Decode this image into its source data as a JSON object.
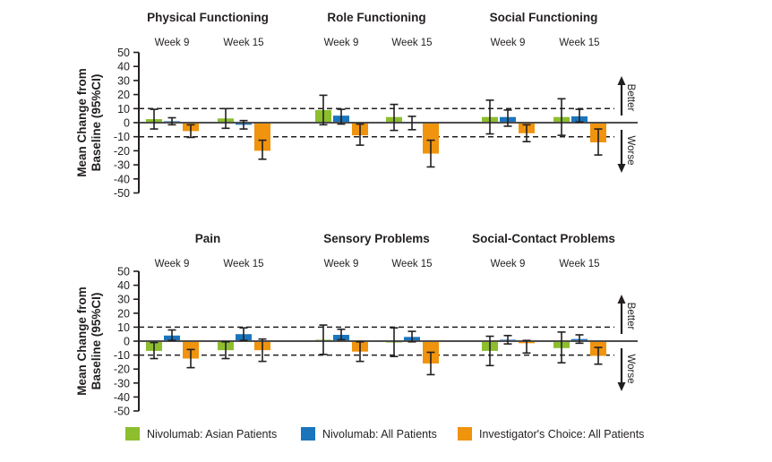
{
  "figure": {
    "ylabel": "Mean Change from Baseline (95%CI)",
    "ylabel_lines": [
      "Mean Change from",
      "Baseline (95%CI)"
    ],
    "better_label": "Better",
    "worse_label": "Worse"
  },
  "colors": {
    "asian_patients": "#8CBE2E",
    "all_patients": "#1B75BC",
    "investigators_choice": "#F0930D",
    "axis": "#231F20",
    "zero_line": "#4D4D4F"
  },
  "legend": {
    "items": [
      {
        "key": "asian_patients",
        "label": "Nivolumab: Asian Patients"
      },
      {
        "key": "all_patients",
        "label": "Nivolumab: All Patients"
      },
      {
        "key": "investigators_choice",
        "label": "Investigator's Choice: All Patients"
      }
    ]
  },
  "chart_data": [
    {
      "type": "bar",
      "panel": "top",
      "ylabel": "Mean Change from Baseline (95%CI)",
      "ylim": [
        -50,
        50
      ],
      "yticks": [
        50,
        40,
        30,
        20,
        10,
        0,
        -10,
        -20,
        -30,
        -40,
        -50
      ],
      "dashed_reference_lines": [
        10,
        -10
      ],
      "series": [
        "Nivolumab: Asian Patients",
        "Nivolumab: All Patients",
        "Investigator's Choice: All Patients"
      ],
      "domains": [
        {
          "title": "Physical Functioning",
          "groups": [
            {
              "week": "Week 9",
              "values": [
                2.5,
                1,
                -6
              ],
              "ci": [
                [
                  -4.5,
                  9.5
                ],
                [
                  -1.5,
                  3.5
                ],
                [
                  -10.5,
                  -1.5
                ]
              ]
            },
            {
              "week": "Week 15",
              "values": [
                3,
                -1.5,
                -20
              ],
              "ci": [
                [
                  -4,
                  10
                ],
                [
                  -4.5,
                  1.5
                ],
                [
                  -26,
                  -12.5
                ]
              ]
            }
          ]
        },
        {
          "title": "Role Functioning",
          "groups": [
            {
              "week": "Week 9",
              "values": [
                9,
                5,
                -9
              ],
              "ci": [
                [
                  -1.5,
                  19.5
                ],
                [
                  -1,
                  9.5
                ],
                [
                  -16,
                  -1
                ]
              ]
            },
            {
              "week": "Week 15",
              "values": [
                4,
                -0.5,
                -22
              ],
              "ci": [
                [
                  -5.5,
                  13
                ],
                [
                  -5,
                  4.5
                ],
                [
                  -31.5,
                  -12.5
                ]
              ]
            }
          ]
        },
        {
          "title": "Social Functioning",
          "groups": [
            {
              "week": "Week 9",
              "values": [
                4,
                4,
                -7.5
              ],
              "ci": [
                [
                  -8,
                  16
                ],
                [
                  -2.5,
                  9
                ],
                [
                  -13.5,
                  -1.5
                ]
              ]
            },
            {
              "week": "Week 15",
              "values": [
                4,
                4.5,
                -14
              ],
              "ci": [
                [
                  -9,
                  17
                ],
                [
                  0.5,
                  9.5
                ],
                [
                  -23,
                  -4.5
                ]
              ]
            }
          ]
        }
      ]
    },
    {
      "type": "bar",
      "panel": "bottom",
      "ylabel": "Mean Change from Baseline (95%CI)",
      "ylim": [
        -50,
        50
      ],
      "yticks": [
        50,
        40,
        30,
        20,
        10,
        0,
        -10,
        -20,
        -30,
        -40,
        -50
      ],
      "dashed_reference_lines": [
        10,
        -10
      ],
      "series": [
        "Nivolumab: Asian Patients",
        "Nivolumab: All Patients",
        "Investigator's Choice: All Patients"
      ],
      "domains": [
        {
          "title": "Pain",
          "groups": [
            {
              "week": "Week 9",
              "values": [
                -7,
                4,
                -12.5
              ],
              "ci": [
                [
                  -12.5,
                  -1
                ],
                [
                  0.5,
                  8
                ],
                [
                  -19,
                  -6
                ]
              ]
            },
            {
              "week": "Week 15",
              "values": [
                -6.5,
                5,
                -6.5
              ],
              "ci": [
                [
                  -12.5,
                  -0.5
                ],
                [
                  0.5,
                  9.5
                ],
                [
                  -14.5,
                  1.5
                ]
              ]
            }
          ]
        },
        {
          "title": "Sensory Problems",
          "groups": [
            {
              "week": "Week 9",
              "values": [
                1,
                4.5,
                -7.5
              ],
              "ci": [
                [
                  -9.5,
                  11.5
                ],
                [
                  1,
                  8.5
                ],
                [
                  -14.5,
                  -0.5
                ]
              ]
            },
            {
              "week": "Week 15",
              "values": [
                -1,
                3,
                -16
              ],
              "ci": [
                [
                  -11,
                  9.5
                ],
                [
                  -0.5,
                  7
                ],
                [
                  -24,
                  -8
                ]
              ]
            }
          ]
        },
        {
          "title": "Social-Contact Problems",
          "groups": [
            {
              "week": "Week 9",
              "values": [
                -7,
                1,
                -1.5
              ],
              "ci": [
                [
                  -17.5,
                  3.5
                ],
                [
                  -2,
                  4
                ],
                [
                  -8.5,
                  0.5
                ]
              ]
            },
            {
              "week": "Week 15",
              "values": [
                -5,
                1.5,
                -10.5
              ],
              "ci": [
                [
                  -15.5,
                  6.5
                ],
                [
                  -1.5,
                  4.5
                ],
                [
                  -16.5,
                  -4.5
                ]
              ]
            }
          ]
        }
      ]
    }
  ]
}
